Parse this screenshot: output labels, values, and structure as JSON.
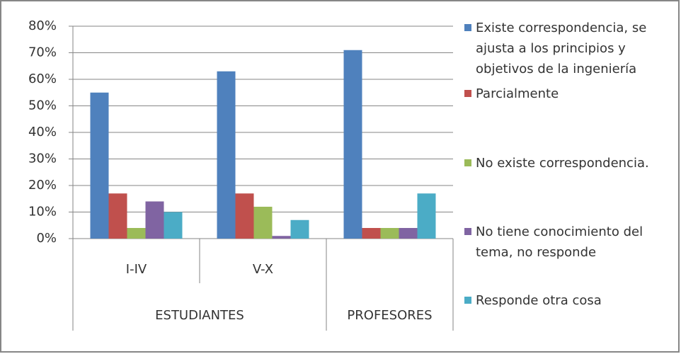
{
  "chart_data": {
    "type": "bar",
    "categories": [
      "I-IV",
      "V-X",
      null
    ],
    "category_groups": [
      "ESTUDIANTES",
      "ESTUDIANTES",
      "PROFESORES"
    ],
    "series": [
      {
        "name": "Existe correspondencia, se ajusta a los principios y objetivos de la ingeniería",
        "color": "#4f81bd",
        "values": [
          55,
          63,
          71
        ]
      },
      {
        "name": "Parcialmente",
        "color": "#c0504d",
        "values": [
          17,
          17,
          4
        ]
      },
      {
        "name": "No existe correspondencia.",
        "color": "#9bbb59",
        "values": [
          4,
          12,
          4
        ]
      },
      {
        "name": "No tiene conocimiento del tema, no responde",
        "color": "#8064a2",
        "values": [
          14,
          1,
          4
        ]
      },
      {
        "name": "Responde otra cosa",
        "color": "#4bacc6",
        "values": [
          10,
          7,
          17
        ]
      }
    ],
    "ylim": [
      0,
      80
    ],
    "yticks": [
      {
        "value": 0,
        "label": "0%"
      },
      {
        "value": 10,
        "label": "10%"
      },
      {
        "value": 20,
        "label": "20%"
      },
      {
        "value": 30,
        "label": "30%"
      },
      {
        "value": 40,
        "label": "40%"
      },
      {
        "value": 50,
        "label": "50%"
      },
      {
        "value": 60,
        "label": "60%"
      },
      {
        "value": 70,
        "label": "70%"
      },
      {
        "value": 80,
        "label": "80%"
      }
    ],
    "grid": true,
    "legend": "right"
  }
}
